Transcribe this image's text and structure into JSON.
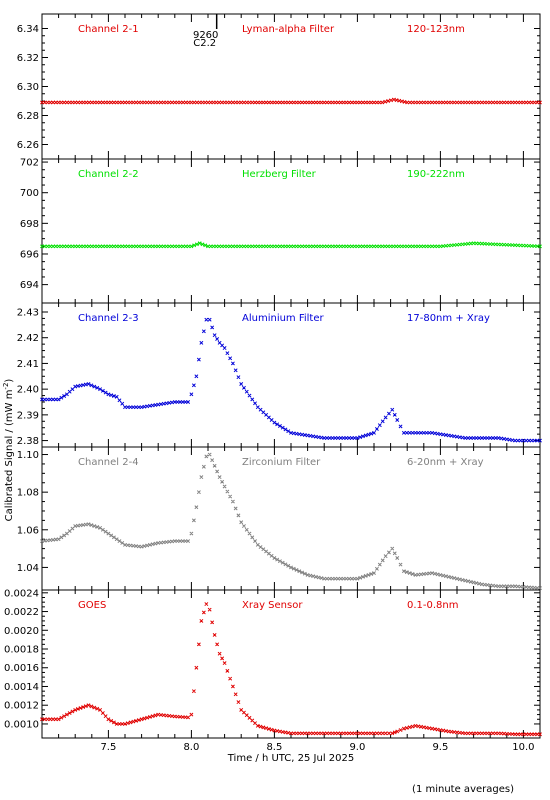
{
  "xlabel": "Time / h UTC, 25 Jul 2025",
  "ylabel": "Calibrated Signal / (mW m",
  "ylabel_sup": "-2",
  "ylabel_close": ")",
  "footnote": "(1 minute averages)",
  "marker": {
    "top": "9260",
    "bottom": "C2.2"
  },
  "x_axis": {
    "range": [
      7.1,
      10.1
    ],
    "ticks": [
      7.5,
      8.0,
      8.5,
      9.0,
      9.5,
      10.0
    ],
    "tick_labels": [
      "7.5",
      "8.0",
      "8.5",
      "9.0",
      "9.5",
      "10.0"
    ],
    "marker_x": 8.08
  },
  "chart_data": [
    {
      "type": "scatter",
      "channel": "Channel 2-1",
      "filter": "Lyman-alpha Filter",
      "band": "120-123nm",
      "color": "#e00000",
      "ylim": [
        6.25,
        6.35
      ],
      "yticks": [
        "6.26",
        "6.28",
        "6.30",
        "6.32",
        "6.34"
      ],
      "yticks_v": [
        6.26,
        6.28,
        6.3,
        6.32,
        6.34
      ],
      "x": [
        7.1,
        7.5,
        8.0,
        8.5,
        9.0,
        9.15,
        9.22,
        9.3,
        9.6,
        10.1
      ],
      "y": [
        6.289,
        6.289,
        6.289,
        6.289,
        6.289,
        6.289,
        6.291,
        6.289,
        6.289,
        6.289
      ]
    },
    {
      "type": "scatter",
      "channel": "Channel 2-2",
      "filter": "Herzberg Filter",
      "band": "190-222nm",
      "color": "#00e000",
      "ylim": [
        692.8,
        702.2
      ],
      "yticks": [
        "694",
        "696",
        "698",
        "700",
        "702"
      ],
      "yticks_v": [
        694,
        696,
        698,
        700,
        702
      ],
      "x": [
        7.1,
        7.5,
        8.0,
        8.05,
        8.1,
        8.5,
        9.0,
        9.5,
        9.7,
        10.1
      ],
      "y": [
        696.5,
        696.5,
        696.5,
        696.7,
        696.5,
        696.5,
        696.5,
        696.5,
        696.7,
        696.5
      ]
    },
    {
      "type": "scatter",
      "channel": "Channel 2-3",
      "filter": "Aluminium Filter",
      "band": "17-80nm + Xray",
      "color": "#0000d8",
      "ylim": [
        2.3775,
        2.4335
      ],
      "yticks": [
        "2.38",
        "2.39",
        "2.40",
        "2.41",
        "2.42",
        "2.43"
      ],
      "yticks_v": [
        2.38,
        2.39,
        2.4,
        2.41,
        2.42,
        2.43
      ],
      "x": [
        7.1,
        7.2,
        7.25,
        7.3,
        7.38,
        7.45,
        7.5,
        7.55,
        7.6,
        7.7,
        7.8,
        7.9,
        7.98,
        8.0,
        8.03,
        8.06,
        8.09,
        8.11,
        8.14,
        8.17,
        8.2,
        8.25,
        8.3,
        8.4,
        8.5,
        8.6,
        8.7,
        8.8,
        8.9,
        9.0,
        9.1,
        9.17,
        9.21,
        9.24,
        9.28,
        9.35,
        9.45,
        9.55,
        9.65,
        9.75,
        9.85,
        9.95,
        10.1
      ],
      "y": [
        2.396,
        2.396,
        2.398,
        2.401,
        2.402,
        2.4,
        2.398,
        2.397,
        2.393,
        2.393,
        2.394,
        2.395,
        2.395,
        2.398,
        2.405,
        2.418,
        2.427,
        2.427,
        2.421,
        2.418,
        2.416,
        2.41,
        2.402,
        2.393,
        2.387,
        2.383,
        2.382,
        2.381,
        2.381,
        2.381,
        2.383,
        2.389,
        2.392,
        2.388,
        2.383,
        2.383,
        2.383,
        2.382,
        2.381,
        2.381,
        2.381,
        2.38,
        2.38
      ]
    },
    {
      "type": "scatter",
      "channel": "Channel 2-4",
      "filter": "Zirconium Filter",
      "band": "6-20nm + Xray",
      "color": "#808080",
      "ylim": [
        1.028,
        1.104
      ],
      "yticks": [
        "1.04",
        "1.06",
        "1.08",
        "1.10"
      ],
      "yticks_v": [
        1.04,
        1.06,
        1.08,
        1.1
      ],
      "x": [
        7.1,
        7.2,
        7.25,
        7.3,
        7.38,
        7.45,
        7.5,
        7.55,
        7.6,
        7.7,
        7.8,
        7.9,
        7.98,
        8.0,
        8.03,
        8.06,
        8.09,
        8.11,
        8.14,
        8.17,
        8.2,
        8.25,
        8.3,
        8.4,
        8.5,
        8.6,
        8.7,
        8.8,
        8.9,
        9.0,
        9.1,
        9.17,
        9.21,
        9.24,
        9.28,
        9.35,
        9.45,
        9.55,
        9.65,
        9.75,
        9.85,
        9.95,
        10.1
      ],
      "y": [
        1.054,
        1.055,
        1.058,
        1.062,
        1.063,
        1.061,
        1.058,
        1.055,
        1.052,
        1.051,
        1.053,
        1.054,
        1.054,
        1.058,
        1.072,
        1.088,
        1.099,
        1.1,
        1.094,
        1.088,
        1.083,
        1.075,
        1.064,
        1.052,
        1.045,
        1.04,
        1.036,
        1.034,
        1.034,
        1.034,
        1.037,
        1.046,
        1.05,
        1.045,
        1.038,
        1.036,
        1.037,
        1.035,
        1.033,
        1.031,
        1.03,
        1.03,
        1.029
      ]
    },
    {
      "type": "scatter",
      "channel": "GOES",
      "filter": "Xray Sensor",
      "band": "0.1-0.8nm",
      "color": "#e00000",
      "ylim": [
        0.00085,
        0.00243
      ],
      "yticks": [
        "0.0010",
        "0.0012",
        "0.0014",
        "0.0016",
        "0.0018",
        "0.0020",
        "0.0022",
        "0.0024"
      ],
      "yticks_v": [
        0.001,
        0.0012,
        0.0014,
        0.0016,
        0.0018,
        0.002,
        0.0022,
        0.0024
      ],
      "x": [
        7.1,
        7.2,
        7.25,
        7.3,
        7.38,
        7.45,
        7.5,
        7.55,
        7.6,
        7.7,
        7.8,
        7.9,
        7.98,
        8.0,
        8.03,
        8.06,
        8.09,
        8.11,
        8.14,
        8.17,
        8.2,
        8.25,
        8.3,
        8.4,
        8.5,
        8.6,
        8.7,
        8.8,
        8.9,
        9.0,
        9.1,
        9.17,
        9.21,
        9.24,
        9.28,
        9.35,
        9.45,
        9.55,
        9.65,
        9.75,
        9.85,
        9.95,
        10.1
      ],
      "y": [
        0.00105,
        0.00105,
        0.0011,
        0.00115,
        0.0012,
        0.00115,
        0.00105,
        0.001,
        0.001,
        0.00105,
        0.0011,
        0.00108,
        0.00107,
        0.0011,
        0.0016,
        0.0021,
        0.00228,
        0.00222,
        0.00195,
        0.00175,
        0.00165,
        0.0014,
        0.00115,
        0.00098,
        0.00093,
        0.0009,
        0.0009,
        0.0009,
        0.0009,
        0.0009,
        0.0009,
        0.0009,
        0.0009,
        0.00092,
        0.00095,
        0.00098,
        0.00095,
        0.00092,
        0.0009,
        0.0009,
        0.0009,
        0.00089,
        0.00089
      ]
    }
  ]
}
